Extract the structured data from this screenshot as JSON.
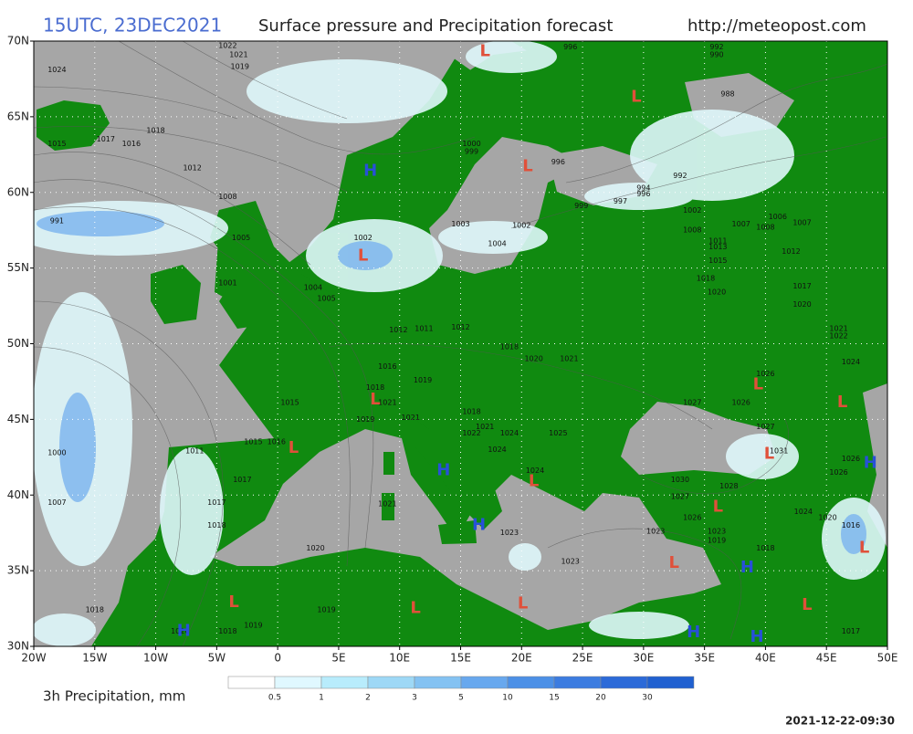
{
  "header": {
    "time": "15UTC, 23DEC2021",
    "title": "Surface pressure and Precipitation forecast",
    "url": "http://meteopost.com"
  },
  "map": {
    "lon_range": [
      -20,
      50
    ],
    "lat_range": [
      30,
      70
    ],
    "grid": true,
    "lat_ticks": [
      {
        "value": 30,
        "label": "30N"
      },
      {
        "value": 35,
        "label": "35N"
      },
      {
        "value": 40,
        "label": "40N"
      },
      {
        "value": 45,
        "label": "45N"
      },
      {
        "value": 50,
        "label": "50N"
      },
      {
        "value": 55,
        "label": "55N"
      },
      {
        "value": 60,
        "label": "60N"
      },
      {
        "value": 65,
        "label": "65N"
      },
      {
        "value": 70,
        "label": "70N"
      }
    ],
    "lon_ticks": [
      {
        "value": -20,
        "label": "20W"
      },
      {
        "value": -15,
        "label": "15W"
      },
      {
        "value": -10,
        "label": "10W"
      },
      {
        "value": -5,
        "label": "5W"
      },
      {
        "value": 0,
        "label": "0"
      },
      {
        "value": 5,
        "label": "5E"
      },
      {
        "value": 10,
        "label": "10E"
      },
      {
        "value": 15,
        "label": "15E"
      },
      {
        "value": 20,
        "label": "20E"
      },
      {
        "value": 25,
        "label": "25E"
      },
      {
        "value": 30,
        "label": "30E"
      },
      {
        "value": 35,
        "label": "35E"
      },
      {
        "value": 40,
        "label": "40E"
      },
      {
        "value": 45,
        "label": "45E"
      },
      {
        "value": 50,
        "label": "50E"
      }
    ],
    "system_colors": {
      "L": "#e0503a",
      "H": "#2850d8"
    },
    "systems": [
      {
        "label": "L",
        "lon": 17,
        "lat": 69.3
      },
      {
        "label": "L",
        "lon": 29.4,
        "lat": 66.3
      },
      {
        "label": "L",
        "lon": 20.5,
        "lat": 61.7
      },
      {
        "label": "H",
        "lon": 7.6,
        "lat": 61.4
      },
      {
        "label": "L",
        "lon": 7.0,
        "lat": 55.8
      },
      {
        "label": "L",
        "lon": 8.0,
        "lat": 46.3
      },
      {
        "label": "L",
        "lon": 1.3,
        "lat": 43.1
      },
      {
        "label": "H",
        "lon": 13.6,
        "lat": 41.6
      },
      {
        "label": "L",
        "lon": 21.0,
        "lat": 40.9
      },
      {
        "label": "H",
        "lon": 16.5,
        "lat": 38.0
      },
      {
        "label": "L",
        "lon": 20.1,
        "lat": 32.8
      },
      {
        "label": "L",
        "lon": 11.3,
        "lat": 32.5
      },
      {
        "label": "L",
        "lon": -3.6,
        "lat": 32.9
      },
      {
        "label": "H",
        "lon": -7.7,
        "lat": 31.0
      },
      {
        "label": "L",
        "lon": 32.5,
        "lat": 35.5
      },
      {
        "label": "H",
        "lon": 38.5,
        "lat": 35.2
      },
      {
        "label": "H",
        "lon": 34.1,
        "lat": 30.9
      },
      {
        "label": "H",
        "lon": 39.3,
        "lat": 30.6
      },
      {
        "label": "L",
        "lon": 43.4,
        "lat": 32.7
      },
      {
        "label": "L",
        "lon": 48.1,
        "lat": 36.5
      },
      {
        "label": "H",
        "lon": 48.6,
        "lat": 42.1
      },
      {
        "label": "L",
        "lon": 40.3,
        "lat": 42.7
      },
      {
        "label": "L",
        "lon": 36.1,
        "lat": 39.2
      },
      {
        "label": "L",
        "lon": 39.4,
        "lat": 47.3
      },
      {
        "label": "L",
        "lon": 46.3,
        "lat": 46.1
      }
    ],
    "isobar_labels": [
      {
        "value": 1022,
        "lon": -4.1,
        "lat": 69.7
      },
      {
        "value": 1021,
        "lon": -3.2,
        "lat": 69.1
      },
      {
        "value": 1019,
        "lon": -3.1,
        "lat": 68.3
      },
      {
        "value": 1024,
        "lon": -18.1,
        "lat": 68.1
      },
      {
        "value": 1018,
        "lon": -10.0,
        "lat": 64.1
      },
      {
        "value": 1017,
        "lon": -14.1,
        "lat": 63.5
      },
      {
        "value": 1016,
        "lon": -12.0,
        "lat": 63.2
      },
      {
        "value": 1015,
        "lon": -18.1,
        "lat": 63.2
      },
      {
        "value": 1012,
        "lon": -7.0,
        "lat": 61.6
      },
      {
        "value": 1008,
        "lon": -4.1,
        "lat": 59.7
      },
      {
        "value": 991,
        "lon": -18.1,
        "lat": 58.1
      },
      {
        "value": 1005,
        "lon": -3.0,
        "lat": 57.0
      },
      {
        "value": 1001,
        "lon": -4.1,
        "lat": 54.0
      },
      {
        "value": 1004,
        "lon": 2.9,
        "lat": 53.7
      },
      {
        "value": 1005,
        "lon": 4.0,
        "lat": 53.0
      },
      {
        "value": 1002,
        "lon": 7.0,
        "lat": 57.0
      },
      {
        "value": 1000,
        "lon": 15.9,
        "lat": 63.2
      },
      {
        "value": 999,
        "lon": 15.9,
        "lat": 62.7
      },
      {
        "value": 1003,
        "lon": 15.0,
        "lat": 57.9
      },
      {
        "value": 1002,
        "lon": 20.0,
        "lat": 57.8
      },
      {
        "value": 1004,
        "lon": 18.0,
        "lat": 56.6
      },
      {
        "value": 999,
        "lon": 24.9,
        "lat": 59.1
      },
      {
        "value": 997,
        "lon": 28.1,
        "lat": 59.4
      },
      {
        "value": 994,
        "lon": 30.0,
        "lat": 60.3
      },
      {
        "value": 996,
        "lon": 30.0,
        "lat": 59.9
      },
      {
        "value": 992,
        "lon": 33.0,
        "lat": 61.1
      },
      {
        "value": 988,
        "lon": 36.9,
        "lat": 66.5
      },
      {
        "value": 992,
        "lon": 36.0,
        "lat": 69.6
      },
      {
        "value": 990,
        "lon": 36.0,
        "lat": 69.1
      },
      {
        "value": 996,
        "lon": 24.0,
        "lat": 69.6
      },
      {
        "value": 996,
        "lon": 23.0,
        "lat": 62.0
      },
      {
        "value": 1012,
        "lon": 9.9,
        "lat": 50.9
      },
      {
        "value": 1011,
        "lon": 12.0,
        "lat": 51.0
      },
      {
        "value": 1012,
        "lon": 15.0,
        "lat": 51.1
      },
      {
        "value": 1018,
        "lon": 19.0,
        "lat": 49.8
      },
      {
        "value": 1020,
        "lon": 21.0,
        "lat": 49.0
      },
      {
        "value": 1021,
        "lon": 23.9,
        "lat": 49.0
      },
      {
        "value": 1016,
        "lon": 9.0,
        "lat": 48.5
      },
      {
        "value": 1019,
        "lon": 11.9,
        "lat": 47.6
      },
      {
        "value": 1018,
        "lon": 8.0,
        "lat": 47.1
      },
      {
        "value": 1021,
        "lon": 9.0,
        "lat": 46.1
      },
      {
        "value": 1015,
        "lon": 1.0,
        "lat": 46.1
      },
      {
        "value": 1019,
        "lon": 7.2,
        "lat": 45.0
      },
      {
        "value": 1021,
        "lon": 10.9,
        "lat": 45.1
      },
      {
        "value": 1018,
        "lon": 15.9,
        "lat": 45.5
      },
      {
        "value": 1021,
        "lon": 17.0,
        "lat": 44.5
      },
      {
        "value": 1024,
        "lon": 19.0,
        "lat": 44.1
      },
      {
        "value": 1025,
        "lon": 23.0,
        "lat": 44.1
      },
      {
        "value": 1022,
        "lon": 15.9,
        "lat": 44.1
      },
      {
        "value": 1024,
        "lon": 18.0,
        "lat": 43.0
      },
      {
        "value": 1024,
        "lon": 21.1,
        "lat": 41.6
      },
      {
        "value": 1011,
        "lon": -6.8,
        "lat": 42.9
      },
      {
        "value": 1016,
        "lon": -0.1,
        "lat": 43.5
      },
      {
        "value": 1015,
        "lon": -2.0,
        "lat": 43.5
      },
      {
        "value": 1017,
        "lon": -2.9,
        "lat": 41.0
      },
      {
        "value": 1017,
        "lon": -5.0,
        "lat": 39.5
      },
      {
        "value": 1018,
        "lon": -5.0,
        "lat": 38.0
      },
      {
        "value": 1021,
        "lon": 9.0,
        "lat": 39.4
      },
      {
        "value": 1023,
        "lon": 19.0,
        "lat": 37.5
      },
      {
        "value": 1023,
        "lon": 24.0,
        "lat": 35.6
      },
      {
        "value": 1020,
        "lon": 3.1,
        "lat": 36.5
      },
      {
        "value": 1019,
        "lon": 4.0,
        "lat": 32.4
      },
      {
        "value": 1019,
        "lon": -2.0,
        "lat": 31.4
      },
      {
        "value": 1018,
        "lon": -4.1,
        "lat": 31.0
      },
      {
        "value": 1020,
        "lon": -8.0,
        "lat": 31.0
      },
      {
        "value": 1018,
        "lon": -15.0,
        "lat": 32.4
      },
      {
        "value": 1000,
        "lon": -18.1,
        "lat": 42.8
      },
      {
        "value": 1007,
        "lon": -18.1,
        "lat": 39.5
      },
      {
        "value": 1030,
        "lon": 33.0,
        "lat": 41.0
      },
      {
        "value": 1027,
        "lon": 33.0,
        "lat": 39.9
      },
      {
        "value": 1026,
        "lon": 34.0,
        "lat": 38.5
      },
      {
        "value": 1023,
        "lon": 31.0,
        "lat": 37.6
      },
      {
        "value": 1023,
        "lon": 36.0,
        "lat": 37.6
      },
      {
        "value": 1019,
        "lon": 36.0,
        "lat": 37.0
      },
      {
        "value": 1018,
        "lon": 40.0,
        "lat": 36.5
      },
      {
        "value": 1031,
        "lon": 41.1,
        "lat": 42.9
      },
      {
        "value": 1028,
        "lon": 37.0,
        "lat": 40.6
      },
      {
        "value": 1024,
        "lon": 43.1,
        "lat": 38.9
      },
      {
        "value": 1020,
        "lon": 45.1,
        "lat": 38.5
      },
      {
        "value": 1016,
        "lon": 47.0,
        "lat": 38.0
      },
      {
        "value": 1026,
        "lon": 47.0,
        "lat": 42.4
      },
      {
        "value": 1026,
        "lon": 46.0,
        "lat": 41.5
      },
      {
        "value": 1017,
        "lon": 47.0,
        "lat": 31.0
      },
      {
        "value": 1026,
        "lon": 38.0,
        "lat": 46.1
      },
      {
        "value": 1027,
        "lon": 34.0,
        "lat": 46.1
      },
      {
        "value": 1026,
        "lon": 40.0,
        "lat": 48.0
      },
      {
        "value": 1027,
        "lon": 40.0,
        "lat": 44.5
      },
      {
        "value": 1024,
        "lon": 47.0,
        "lat": 48.8
      },
      {
        "value": 1021,
        "lon": 46.0,
        "lat": 51.0
      },
      {
        "value": 1022,
        "lon": 46.0,
        "lat": 50.5
      },
      {
        "value": 1017,
        "lon": 43.0,
        "lat": 53.8
      },
      {
        "value": 1020,
        "lon": 43.0,
        "lat": 52.6
      },
      {
        "value": 1012,
        "lon": 42.1,
        "lat": 56.1
      },
      {
        "value": 1020,
        "lon": 36.0,
        "lat": 53.4
      },
      {
        "value": 1018,
        "lon": 35.1,
        "lat": 54.3
      },
      {
        "value": 1011,
        "lon": 36.1,
        "lat": 56.8
      },
      {
        "value": 1013,
        "lon": 36.1,
        "lat": 56.4
      },
      {
        "value": 1015,
        "lon": 36.1,
        "lat": 55.5
      },
      {
        "value": 1002,
        "lon": 34.0,
        "lat": 58.8
      },
      {
        "value": 1008,
        "lon": 34.0,
        "lat": 57.5
      },
      {
        "value": 1007,
        "lon": 38.0,
        "lat": 57.9
      },
      {
        "value": 1008,
        "lon": 40.0,
        "lat": 57.7
      },
      {
        "value": 1006,
        "lon": 41.0,
        "lat": 58.4
      },
      {
        "value": 1007,
        "lon": 43.0,
        "lat": 58.0
      }
    ]
  },
  "colorbar": {
    "label": "3h Precipitation, mm",
    "levels": [
      0.5,
      1,
      2,
      3,
      5,
      10,
      15,
      20,
      30
    ],
    "colors": [
      "#ffffff",
      "#e0f8ff",
      "#b8ecfc",
      "#9ed8f6",
      "#84c2f2",
      "#68a8ee",
      "#4c90e6",
      "#3c7ce0",
      "#2c6ad8",
      "#2060d0"
    ]
  },
  "timestamp": "2021-12-22-09:30"
}
